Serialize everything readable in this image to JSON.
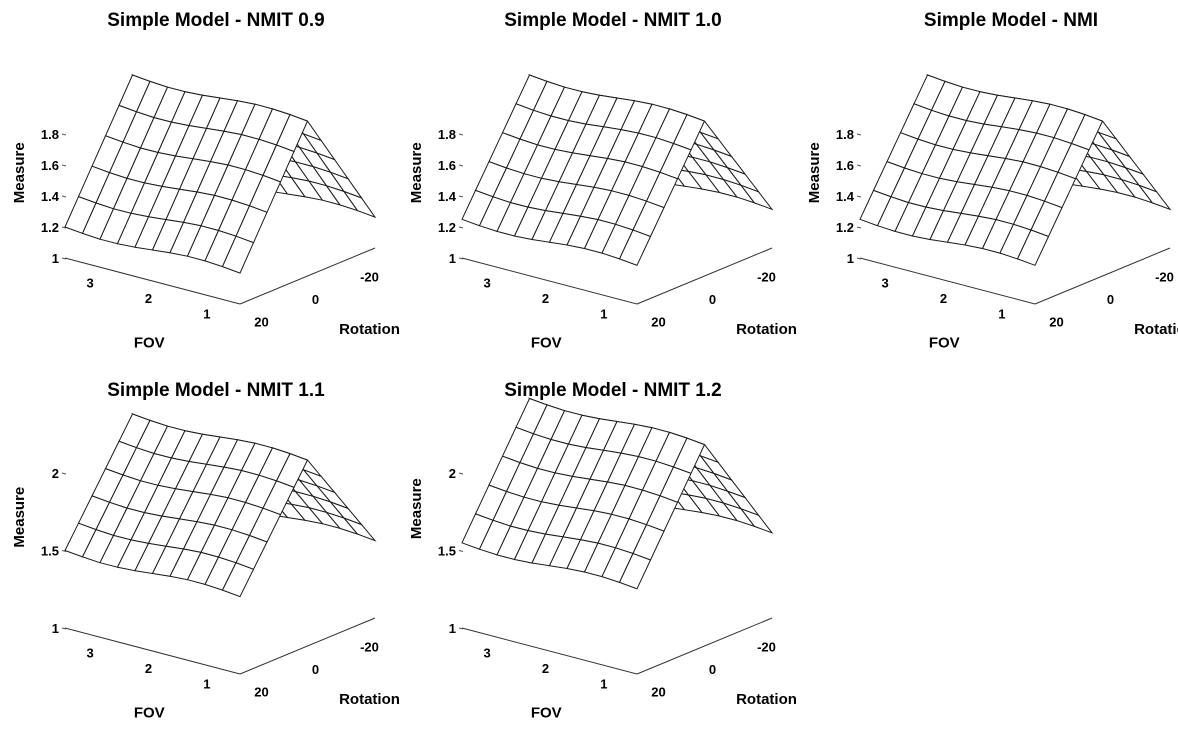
{
  "chart_data": [
    {
      "type": "surface",
      "title": "Simple Model - NMIT 0.9",
      "xlabel": "FOV",
      "ylabel": "Rotation",
      "zlabel": "Measure",
      "x_ticks": [
        "3",
        "2",
        "1"
      ],
      "y_ticks": [
        "20",
        "0",
        "-20"
      ],
      "z_ticks": [
        "1",
        "1.2",
        "1.4",
        "1.6",
        "1.8"
      ],
      "zlim": [
        1,
        2.0
      ],
      "x_range": [
        0.5,
        3.5
      ],
      "y_range": [
        -25,
        25
      ],
      "peak_value": 2.0,
      "edge_value": 1.2
    },
    {
      "type": "surface",
      "title": "Simple Model - NMIT 1.0",
      "xlabel": "FOV",
      "ylabel": "Rotation",
      "zlabel": "Measure",
      "x_ticks": [
        "3",
        "2",
        "1"
      ],
      "y_ticks": [
        "20",
        "0",
        "-20"
      ],
      "z_ticks": [
        "1",
        "1.2",
        "1.4",
        "1.6",
        "1.8"
      ],
      "zlim": [
        1,
        2.0
      ],
      "x_range": [
        0.5,
        3.5
      ],
      "y_range": [
        -25,
        25
      ],
      "peak_value": 2.0,
      "edge_value": 1.25
    },
    {
      "type": "surface",
      "title": "Simple Model - NMI",
      "xlabel": "FOV",
      "ylabel": "Rotation",
      "zlabel": "Measure",
      "x_ticks": [
        "3",
        "2",
        "1"
      ],
      "y_ticks": [
        "20",
        "0",
        "-20"
      ],
      "z_ticks": [
        "1",
        "1.2",
        "1.4",
        "1.6",
        "1.8"
      ],
      "zlim": [
        1,
        2.0
      ],
      "x_range": [
        0.5,
        3.5
      ],
      "y_range": [
        -25,
        25
      ],
      "peak_value": 2.0,
      "edge_value": 1.25
    },
    {
      "type": "surface",
      "title": "Simple Model - NMIT 1.1",
      "xlabel": "FOV",
      "ylabel": "Rotation",
      "zlabel": "Measure",
      "x_ticks": [
        "3",
        "2",
        "1"
      ],
      "y_ticks": [
        "20",
        "0",
        "-20"
      ],
      "z_ticks": [
        "1",
        "1.5",
        "2"
      ],
      "zlim": [
        1,
        2.3
      ],
      "x_range": [
        0.5,
        3.5
      ],
      "y_range": [
        -25,
        25
      ],
      "peak_value": 2.2,
      "edge_value": 1.5
    },
    {
      "type": "surface",
      "title": "Simple Model - NMIT 1.2",
      "xlabel": "FOV",
      "ylabel": "Rotation",
      "zlabel": "Measure",
      "x_ticks": [
        "3",
        "2",
        "1"
      ],
      "y_ticks": [
        "20",
        "0",
        "-20"
      ],
      "z_ticks": [
        "1",
        "1.5",
        "2"
      ],
      "zlim": [
        1,
        2.4
      ],
      "x_range": [
        0.5,
        3.5
      ],
      "y_range": [
        -25,
        25
      ],
      "peak_value": 2.3,
      "edge_value": 1.55
    }
  ]
}
